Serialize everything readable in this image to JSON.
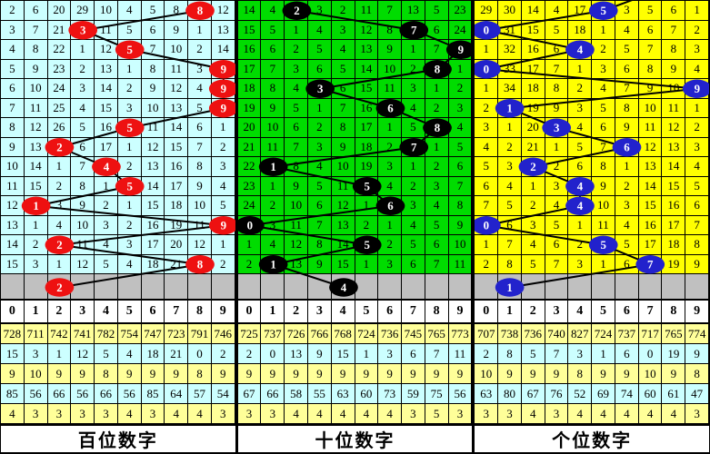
{
  "columns": [
    "0",
    "1",
    "2",
    "3",
    "4",
    "5",
    "6",
    "7",
    "8",
    "9"
  ],
  "colors": {
    "panel_hundreds_bg": "#CCFFFF",
    "panel_tens_bg": "#00DC00",
    "panel_units_bg": "#FFFF00",
    "gray_row": "#C0C0C0",
    "stat_row_yellow": "#FFFF99",
    "stat_row_cyan": "#CCFFFF",
    "circle_hundreds": "#EE1111",
    "circle_tens": "#000000",
    "circle_units": "#2222CC",
    "trend_line": "#000000",
    "grid_line": "#000000"
  },
  "panels": [
    {
      "id": "hundreds",
      "bg": "#CCFFFF",
      "circle_color": "#EE1111",
      "top_exit_x": null
    },
    {
      "id": "tens",
      "bg": "#00DC00",
      "circle_color": "#000000",
      "top_exit_x": null
    },
    {
      "id": "units",
      "bg": "#FFFF00",
      "circle_color": "#2222CC",
      "top_exit_x": 186
    }
  ],
  "chart_data": [
    {
      "type": "line",
      "title": "百位数字",
      "ylim": [
        0,
        9
      ],
      "categories": [
        "0",
        "1",
        "2",
        "3",
        "4",
        "5",
        "6",
        "7",
        "8",
        "9"
      ],
      "series": [
        {
          "name": "circled-digit-per-row",
          "values": [
            8,
            3,
            5,
            9,
            9,
            9,
            5,
            2,
            4,
            5,
            1,
            9,
            2,
            8,
            2
          ]
        }
      ],
      "omission_grid": [
        [
          "2",
          "6",
          "20",
          "29",
          "10",
          "4",
          "5",
          "8",
          "8",
          "12"
        ],
        [
          "3",
          "7",
          "21",
          "3",
          "11",
          "5",
          "6",
          "9",
          "1",
          "13"
        ],
        [
          "4",
          "8",
          "22",
          "1",
          "12",
          "5",
          "7",
          "10",
          "2",
          "14"
        ],
        [
          "5",
          "9",
          "23",
          "2",
          "13",
          "1",
          "8",
          "11",
          "3",
          "9"
        ],
        [
          "6",
          "10",
          "24",
          "3",
          "14",
          "2",
          "9",
          "12",
          "4",
          "9"
        ],
        [
          "7",
          "11",
          "25",
          "4",
          "15",
          "3",
          "10",
          "13",
          "5",
          "9"
        ],
        [
          "8",
          "12",
          "26",
          "5",
          "16",
          "5",
          "11",
          "14",
          "6",
          "1"
        ],
        [
          "9",
          "13",
          "2",
          "6",
          "17",
          "1",
          "12",
          "15",
          "7",
          "2"
        ],
        [
          "10",
          "14",
          "1",
          "7",
          "4",
          "2",
          "13",
          "16",
          "8",
          "3"
        ],
        [
          "11",
          "15",
          "2",
          "8",
          "1",
          "5",
          "14",
          "17",
          "9",
          "4"
        ],
        [
          "12",
          "1",
          "3",
          "9",
          "2",
          "1",
          "15",
          "18",
          "10",
          "5"
        ],
        [
          "13",
          "1",
          "4",
          "10",
          "3",
          "2",
          "16",
          "19",
          "11",
          "9"
        ],
        [
          "14",
          "2",
          "2",
          "11",
          "4",
          "3",
          "17",
          "20",
          "12",
          "1"
        ],
        [
          "15",
          "3",
          "1",
          "12",
          "5",
          "4",
          "18",
          "21",
          "8",
          "2"
        ]
      ],
      "stats_rows": [
        [
          "728",
          "711",
          "742",
          "741",
          "782",
          "754",
          "747",
          "723",
          "791",
          "746"
        ],
        [
          "15",
          "3",
          "1",
          "12",
          "5",
          "4",
          "18",
          "21",
          "0",
          "2"
        ],
        [
          "9",
          "10",
          "9",
          "9",
          "8",
          "9",
          "9",
          "9",
          "8",
          "9"
        ],
        [
          "85",
          "56",
          "66",
          "56",
          "66",
          "56",
          "85",
          "64",
          "57",
          "54"
        ],
        [
          "4",
          "3",
          "3",
          "3",
          "3",
          "4",
          "3",
          "4",
          "4",
          "3"
        ]
      ]
    },
    {
      "type": "line",
      "title": "十位数字",
      "ylim": [
        0,
        9
      ],
      "categories": [
        "0",
        "1",
        "2",
        "3",
        "4",
        "5",
        "6",
        "7",
        "8",
        "9"
      ],
      "series": [
        {
          "name": "circled-digit-per-row",
          "values": [
            2,
            7,
            9,
            8,
            3,
            6,
            8,
            7,
            1,
            5,
            6,
            0,
            5,
            1,
            4
          ]
        }
      ],
      "omission_grid": [
        [
          "14",
          "4",
          "2",
          "3",
          "2",
          "11",
          "7",
          "13",
          "5",
          "23"
        ],
        [
          "15",
          "5",
          "1",
          "4",
          "3",
          "12",
          "8",
          "7",
          "6",
          "24"
        ],
        [
          "16",
          "6",
          "2",
          "5",
          "4",
          "13",
          "9",
          "1",
          "7",
          "9"
        ],
        [
          "17",
          "7",
          "3",
          "6",
          "5",
          "14",
          "10",
          "2",
          "8",
          "1"
        ],
        [
          "18",
          "8",
          "4",
          "3",
          "6",
          "15",
          "11",
          "3",
          "1",
          "2"
        ],
        [
          "19",
          "9",
          "5",
          "1",
          "7",
          "16",
          "6",
          "4",
          "2",
          "3"
        ],
        [
          "20",
          "10",
          "6",
          "2",
          "8",
          "17",
          "1",
          "5",
          "8",
          "4"
        ],
        [
          "21",
          "11",
          "7",
          "3",
          "9",
          "18",
          "2",
          "7",
          "1",
          "5"
        ],
        [
          "22",
          "1",
          "8",
          "4",
          "10",
          "19",
          "3",
          "1",
          "2",
          "6"
        ],
        [
          "23",
          "1",
          "9",
          "5",
          "11",
          "5",
          "4",
          "2",
          "3",
          "7"
        ],
        [
          "24",
          "2",
          "10",
          "6",
          "12",
          "1",
          "6",
          "3",
          "4",
          "8"
        ],
        [
          "0",
          "3",
          "11",
          "7",
          "13",
          "2",
          "1",
          "4",
          "5",
          "9"
        ],
        [
          "1",
          "4",
          "12",
          "8",
          "14",
          "5",
          "2",
          "5",
          "6",
          "10"
        ],
        [
          "2",
          "1",
          "13",
          "9",
          "15",
          "1",
          "3",
          "6",
          "7",
          "11"
        ]
      ],
      "stats_rows": [
        [
          "725",
          "737",
          "726",
          "766",
          "768",
          "724",
          "736",
          "745",
          "765",
          "773"
        ],
        [
          "2",
          "0",
          "13",
          "9",
          "15",
          "1",
          "3",
          "6",
          "7",
          "11"
        ],
        [
          "9",
          "9",
          "9",
          "9",
          "9",
          "9",
          "9",
          "9",
          "9",
          "9"
        ],
        [
          "67",
          "66",
          "58",
          "55",
          "63",
          "60",
          "73",
          "59",
          "75",
          "56"
        ],
        [
          "3",
          "3",
          "4",
          "4",
          "4",
          "4",
          "4",
          "3",
          "5",
          "3"
        ]
      ]
    },
    {
      "type": "line",
      "title": "个位数字",
      "ylim": [
        0,
        9
      ],
      "categories": [
        "0",
        "1",
        "2",
        "3",
        "4",
        "5",
        "6",
        "7",
        "8",
        "9"
      ],
      "series": [
        {
          "name": "circled-digit-per-row",
          "values": [
            5,
            0,
            4,
            0,
            9,
            1,
            3,
            6,
            2,
            4,
            4,
            0,
            5,
            7,
            1
          ]
        }
      ],
      "omission_grid": [
        [
          "29",
          "30",
          "14",
          "4",
          "17",
          "5",
          "3",
          "5",
          "6",
          "1"
        ],
        [
          "0",
          "31",
          "15",
          "5",
          "18",
          "1",
          "4",
          "6",
          "7",
          "2"
        ],
        [
          "1",
          "32",
          "16",
          "6",
          "4",
          "2",
          "5",
          "7",
          "8",
          "3"
        ],
        [
          "0",
          "33",
          "17",
          "7",
          "1",
          "3",
          "6",
          "8",
          "9",
          "4"
        ],
        [
          "1",
          "34",
          "18",
          "8",
          "2",
          "4",
          "7",
          "9",
          "10",
          "9"
        ],
        [
          "2",
          "1",
          "19",
          "9",
          "3",
          "5",
          "8",
          "10",
          "11",
          "1"
        ],
        [
          "3",
          "1",
          "20",
          "3",
          "4",
          "6",
          "9",
          "11",
          "12",
          "2"
        ],
        [
          "4",
          "2",
          "21",
          "1",
          "5",
          "7",
          "6",
          "12",
          "13",
          "3"
        ],
        [
          "5",
          "3",
          "2",
          "2",
          "6",
          "8",
          "1",
          "13",
          "14",
          "4"
        ],
        [
          "6",
          "4",
          "1",
          "3",
          "4",
          "9",
          "2",
          "14",
          "15",
          "5"
        ],
        [
          "7",
          "5",
          "2",
          "4",
          "4",
          "10",
          "3",
          "15",
          "16",
          "6"
        ],
        [
          "0",
          "6",
          "3",
          "5",
          "1",
          "11",
          "4",
          "16",
          "17",
          "7"
        ],
        [
          "1",
          "7",
          "4",
          "6",
          "2",
          "5",
          "5",
          "17",
          "18",
          "8"
        ],
        [
          "2",
          "8",
          "5",
          "7",
          "3",
          "1",
          "6",
          "7",
          "19",
          "9"
        ]
      ],
      "stats_rows": [
        [
          "707",
          "738",
          "736",
          "740",
          "827",
          "724",
          "737",
          "717",
          "765",
          "774"
        ],
        [
          "2",
          "8",
          "5",
          "7",
          "3",
          "1",
          "6",
          "0",
          "19",
          "9"
        ],
        [
          "10",
          "9",
          "9",
          "9",
          "8",
          "9",
          "9",
          "10",
          "9",
          "8"
        ],
        [
          "63",
          "80",
          "67",
          "76",
          "52",
          "69",
          "74",
          "60",
          "61",
          "47"
        ],
        [
          "3",
          "3",
          "4",
          "3",
          "4",
          "4",
          "4",
          "4",
          "4",
          "3"
        ]
      ]
    }
  ]
}
